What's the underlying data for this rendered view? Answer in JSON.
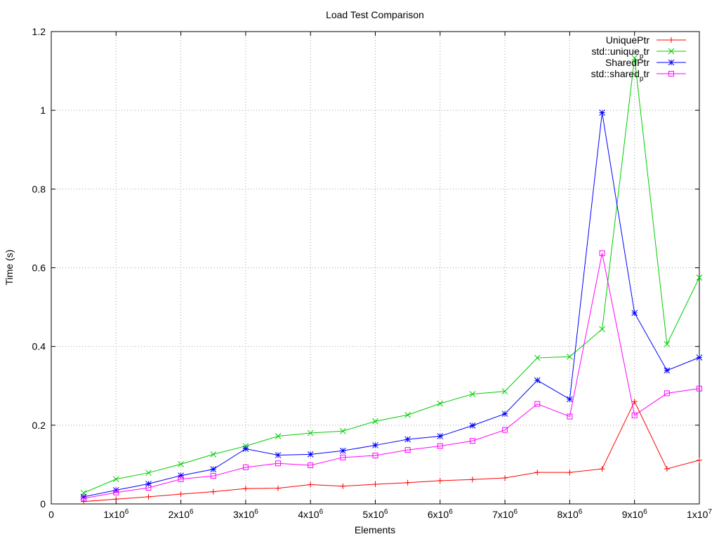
{
  "chart_data": {
    "type": "line",
    "title": "Load Test Comparison",
    "xlabel": "Elements",
    "ylabel": "Time (s)",
    "xlim": [
      0,
      10000000
    ],
    "ylim": [
      0,
      1.2
    ],
    "grid": true,
    "legend_position": "top-right",
    "x_ticks": [
      {
        "value": 0,
        "base": "0",
        "exp": ""
      },
      {
        "value": 1000000,
        "base": "1x10",
        "exp": "6"
      },
      {
        "value": 2000000,
        "base": "2x10",
        "exp": "6"
      },
      {
        "value": 3000000,
        "base": "3x10",
        "exp": "6"
      },
      {
        "value": 4000000,
        "base": "4x10",
        "exp": "6"
      },
      {
        "value": 5000000,
        "base": "5x10",
        "exp": "6"
      },
      {
        "value": 6000000,
        "base": "6x10",
        "exp": "6"
      },
      {
        "value": 7000000,
        "base": "7x10",
        "exp": "6"
      },
      {
        "value": 8000000,
        "base": "8x10",
        "exp": "6"
      },
      {
        "value": 9000000,
        "base": "9x10",
        "exp": "6"
      },
      {
        "value": 10000000,
        "base": "1x10",
        "exp": "7"
      }
    ],
    "y_ticks": [
      {
        "value": 0,
        "label": "0"
      },
      {
        "value": 0.2,
        "label": "0.2"
      },
      {
        "value": 0.4,
        "label": "0.4"
      },
      {
        "value": 0.6,
        "label": "0.6"
      },
      {
        "value": 0.8,
        "label": "0.8"
      },
      {
        "value": 1.0,
        "label": "1"
      },
      {
        "value": 1.2,
        "label": "1.2"
      }
    ],
    "x": [
      500000,
      1000000,
      1500000,
      2000000,
      2500000,
      3000000,
      3500000,
      4000000,
      4500000,
      5000000,
      5500000,
      6000000,
      6500000,
      7000000,
      7500000,
      8000000,
      8500000,
      9000000,
      9500000,
      10000000
    ],
    "series": [
      {
        "name": "UniquePtr",
        "legend_main": "UniquePtr",
        "legend_sub": "",
        "legend_tail": "",
        "color": "#ff0000",
        "marker": "plus",
        "values": [
          0.006,
          0.012,
          0.018,
          0.025,
          0.031,
          0.039,
          0.04,
          0.049,
          0.045,
          0.05,
          0.054,
          0.059,
          0.062,
          0.066,
          0.08,
          0.08,
          0.089,
          0.26,
          0.089,
          0.111
        ]
      },
      {
        "name": "std::unique_ptr",
        "legend_main": "std::unique",
        "legend_sub": "p",
        "legend_tail": "tr",
        "color": "#00cc00",
        "marker": "cross",
        "values": [
          0.028,
          0.063,
          0.079,
          0.101,
          0.126,
          0.147,
          0.172,
          0.18,
          0.185,
          0.21,
          0.226,
          0.255,
          0.279,
          0.286,
          0.371,
          0.374,
          0.444,
          1.133,
          0.406,
          0.575
        ]
      },
      {
        "name": "SharedPtr",
        "legend_main": "SharedPtr",
        "legend_sub": "",
        "legend_tail": "",
        "color": "#0000ff",
        "marker": "star",
        "values": [
          0.018,
          0.035,
          0.051,
          0.072,
          0.088,
          0.14,
          0.124,
          0.126,
          0.135,
          0.149,
          0.164,
          0.172,
          0.199,
          0.229,
          0.314,
          0.266,
          0.994,
          0.485,
          0.339,
          0.372
        ]
      },
      {
        "name": "std::shared_ptr",
        "legend_main": "std::shared",
        "legend_sub": "p",
        "legend_tail": "tr",
        "color": "#ff00ff",
        "marker": "box",
        "values": [
          0.014,
          0.029,
          0.041,
          0.063,
          0.071,
          0.093,
          0.103,
          0.098,
          0.118,
          0.123,
          0.137,
          0.147,
          0.16,
          0.188,
          0.254,
          0.222,
          0.637,
          0.225,
          0.281,
          0.293
        ]
      }
    ]
  }
}
